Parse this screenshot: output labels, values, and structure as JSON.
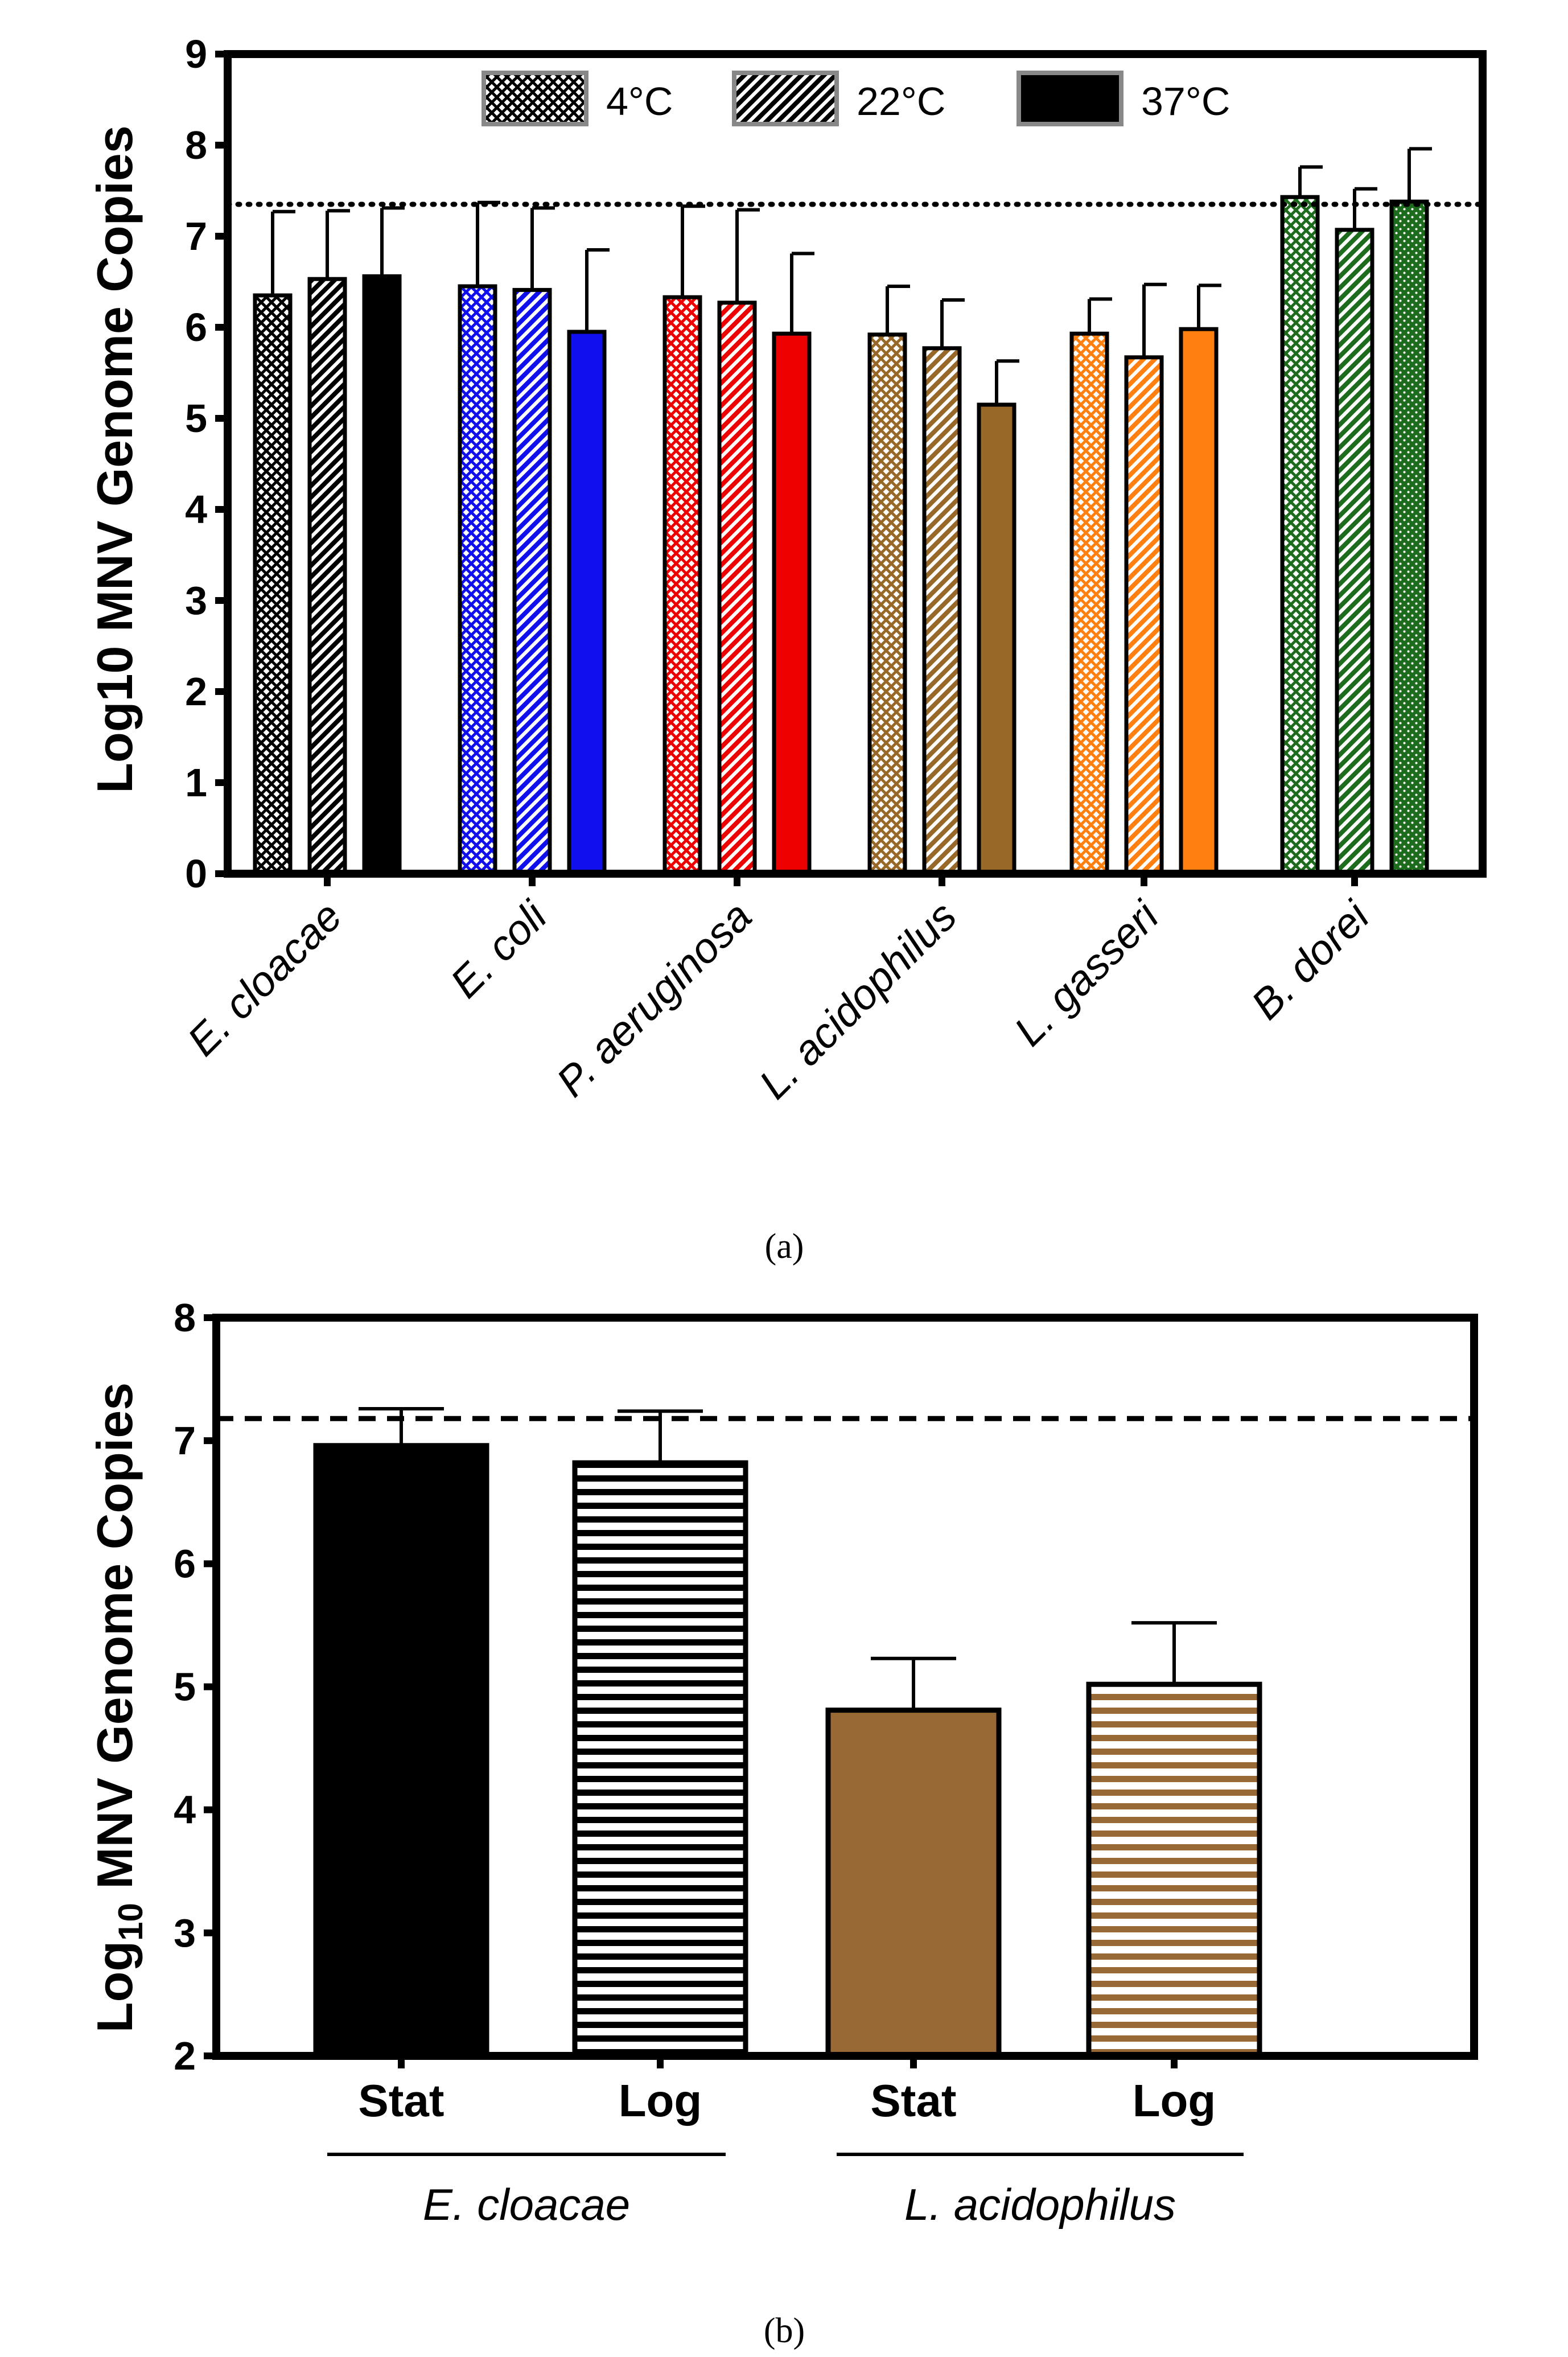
{
  "chart_data": [
    {
      "panel": "a",
      "type": "bar",
      "caption": "(a)",
      "ylabel": "Log10 MNV Genome Copies",
      "ylim": [
        0,
        9
      ],
      "yticks": [
        "0",
        "1",
        "2",
        "3",
        "4",
        "5",
        "6",
        "7",
        "8",
        "9"
      ],
      "reference_line": {
        "value": 7.35,
        "style": "dotted"
      },
      "legend": {
        "placement": "top-center",
        "entries": [
          "4°C",
          "22°C",
          "37°C"
        ]
      },
      "categories": [
        "E. cloacae",
        "E. coli",
        "P. aeruginosa",
        "L. acidophilus",
        "L. gasseri",
        "B. dorei"
      ],
      "category_colors": [
        "#000000",
        "#1010ee",
        "#ee0000",
        "#986828",
        "#ff8010",
        "#1d6b1d"
      ],
      "series": [
        {
          "name": "4°C",
          "pattern": "crosshatch",
          "values": [
            6.35,
            6.45,
            6.33,
            5.92,
            5.93,
            7.43
          ],
          "errors": [
            0.92,
            0.92,
            1.0,
            0.53,
            0.38,
            0.33
          ]
        },
        {
          "name": "22°C",
          "pattern": "diagonal",
          "values": [
            6.53,
            6.41,
            6.27,
            5.77,
            5.67,
            7.07
          ],
          "errors": [
            0.75,
            0.9,
            1.02,
            0.53,
            0.8,
            0.45
          ]
        },
        {
          "name": "37°C",
          "pattern": "solid",
          "values": [
            6.56,
            5.95,
            5.93,
            5.15,
            5.98,
            7.38
          ],
          "errors": [
            0.75,
            0.9,
            0.88,
            0.48,
            0.48,
            0.58
          ]
        }
      ]
    },
    {
      "panel": "b",
      "type": "bar",
      "caption": "(b)",
      "ylabel_prefix": "Log",
      "ylabel_subscript": "10",
      "ylabel_suffix": " MNV Genome Copies",
      "ylim": [
        2,
        8
      ],
      "yticks": [
        "2",
        "3",
        "4",
        "5",
        "6",
        "7",
        "8"
      ],
      "reference_line": {
        "value": 7.18,
        "style": "dashed"
      },
      "groups": [
        "E. cloacae",
        "L. acidophilus"
      ],
      "bar_labels": [
        "Stat",
        "Log",
        "Stat",
        "Log"
      ],
      "values": [
        6.96,
        6.82,
        4.81,
        5.02
      ],
      "errors": [
        0.3,
        0.42,
        0.42,
        0.5
      ],
      "colors": [
        "#000000",
        "#000000",
        "#986934",
        "#986934"
      ],
      "patterns": [
        "solid",
        "horizontal",
        "solid",
        "horizontal"
      ]
    }
  ]
}
